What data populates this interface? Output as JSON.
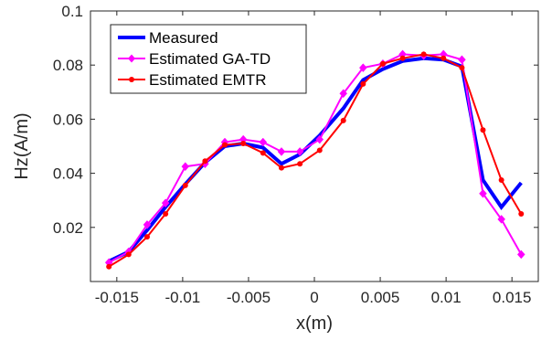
{
  "chart_data": {
    "type": "line",
    "title": "",
    "xlabel": "x(m)",
    "ylabel": "Hz(A/m)",
    "xlim": [
      -0.017,
      0.017
    ],
    "ylim": [
      0,
      0.1
    ],
    "xticks": [
      -0.015,
      -0.01,
      -0.005,
      0,
      0.005,
      0.01,
      0.015
    ],
    "xtick_labels": [
      "-0.015",
      "-0.01",
      "-0.005",
      "0",
      "0.005",
      "0.01",
      "0.015"
    ],
    "yticks": [
      0.02,
      0.04,
      0.06,
      0.08,
      0.1
    ],
    "ytick_labels": [
      "0.02",
      "0.04",
      "0.06",
      "0.08",
      "0.1"
    ],
    "grid": false,
    "legend_position": "top-left",
    "series": [
      {
        "name": "Measured",
        "color": "#0000ff",
        "marker": "none",
        "x": [
          -0.0156,
          -0.0141,
          -0.0127,
          -0.0113,
          -0.0098,
          -0.0083,
          -0.0068,
          -0.0054,
          -0.0039,
          -0.0025,
          -0.0011,
          0.0004,
          0.0022,
          0.0037,
          0.0052,
          0.0067,
          0.0083,
          0.0098,
          0.0112,
          0.0128,
          0.0142,
          0.0157
        ],
        "y": [
          0.0075,
          0.011,
          0.019,
          0.0275,
          0.036,
          0.044,
          0.05,
          0.051,
          0.0495,
          0.0435,
          0.047,
          0.054,
          0.064,
          0.0745,
          0.0785,
          0.0815,
          0.0825,
          0.082,
          0.0795,
          0.0375,
          0.0275,
          0.0365
        ]
      },
      {
        "name": "Estimated GA-TD",
        "color": "#ff00ff",
        "marker": "diamond",
        "x": [
          -0.0156,
          -0.0141,
          -0.0127,
          -0.0113,
          -0.0098,
          -0.0083,
          -0.0068,
          -0.0054,
          -0.0039,
          -0.0025,
          -0.0011,
          0.0004,
          0.0022,
          0.0037,
          0.0052,
          0.0067,
          0.0083,
          0.0098,
          0.0112,
          0.0128,
          0.0142,
          0.0157
        ],
        "y": [
          0.007,
          0.011,
          0.021,
          0.029,
          0.0425,
          0.0435,
          0.0515,
          0.0525,
          0.0515,
          0.048,
          0.048,
          0.0525,
          0.0695,
          0.079,
          0.0805,
          0.084,
          0.0835,
          0.084,
          0.082,
          0.0325,
          0.023,
          0.01
        ]
      },
      {
        "name": "Estimated EMTR",
        "color": "#ff0000",
        "marker": "circle",
        "x": [
          -0.0156,
          -0.0141,
          -0.0127,
          -0.0113,
          -0.0098,
          -0.0083,
          -0.0068,
          -0.0054,
          -0.0039,
          -0.0025,
          -0.0011,
          0.0004,
          0.0022,
          0.0037,
          0.0052,
          0.0067,
          0.0083,
          0.0098,
          0.0112,
          0.0128,
          0.0142,
          0.0157
        ],
        "y": [
          0.0055,
          0.01,
          0.0165,
          0.025,
          0.0355,
          0.0445,
          0.0505,
          0.051,
          0.0475,
          0.042,
          0.0435,
          0.0485,
          0.0595,
          0.073,
          0.0805,
          0.0825,
          0.084,
          0.0825,
          0.079,
          0.056,
          0.0375,
          0.025
        ]
      }
    ]
  }
}
